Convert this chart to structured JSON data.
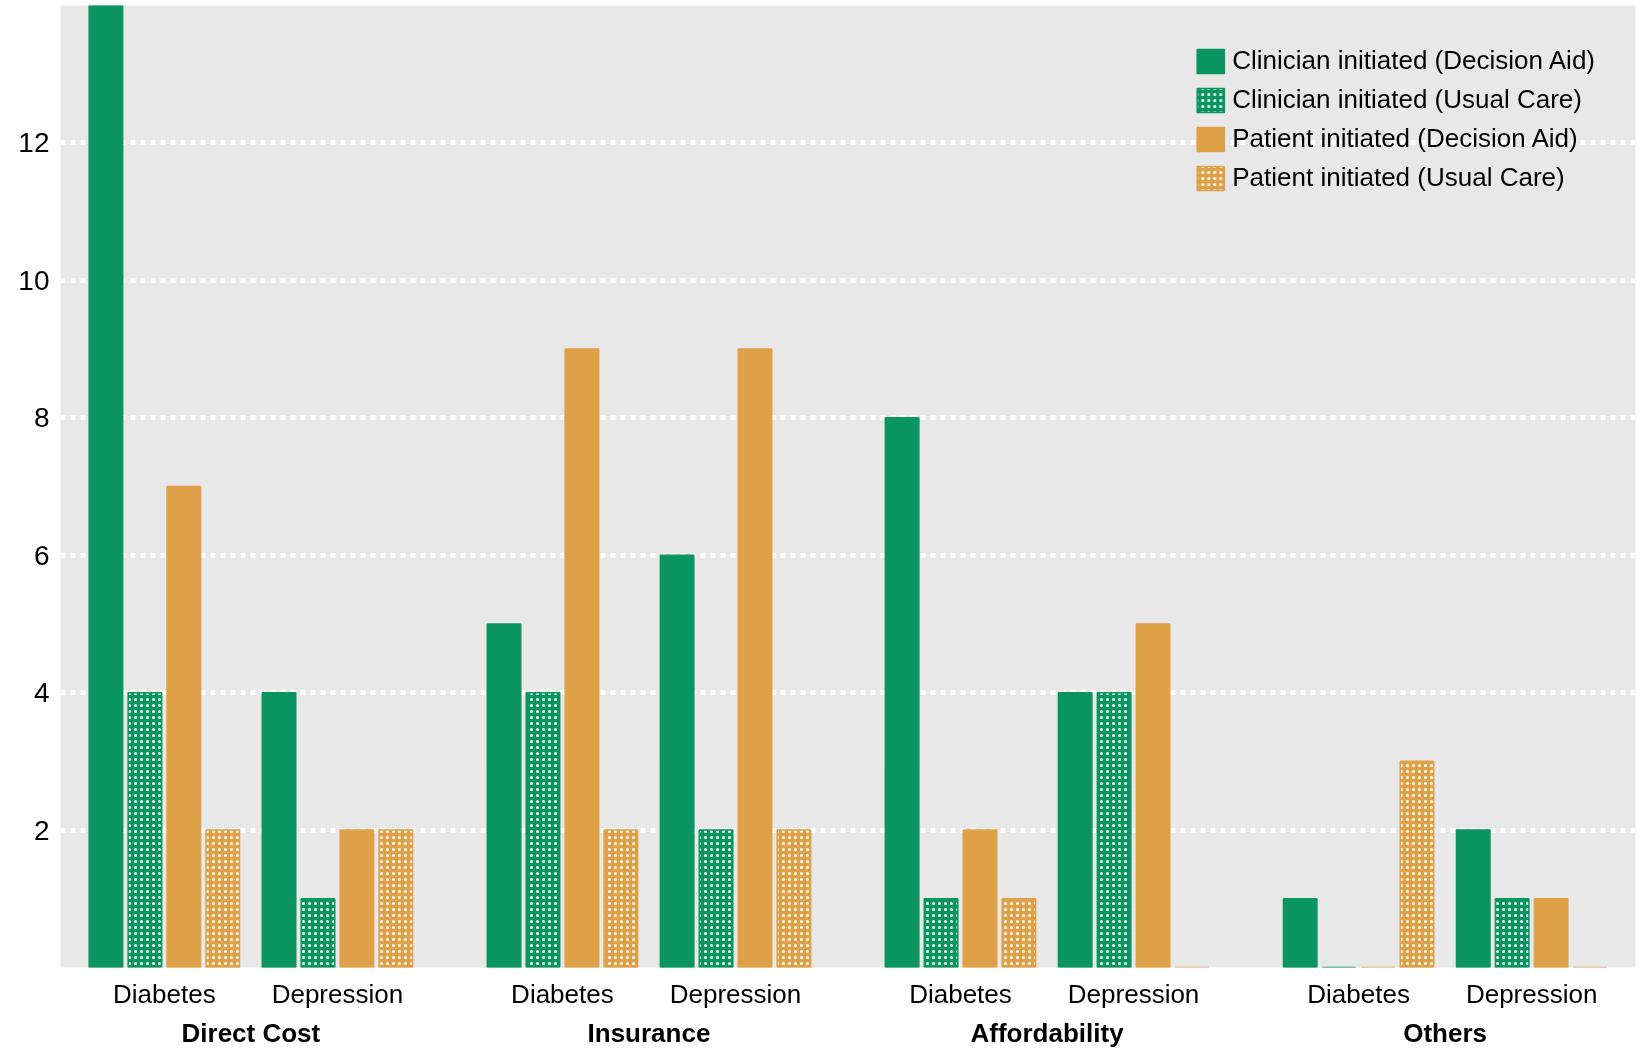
{
  "chart_data": {
    "type": "bar",
    "categories": [
      "Diabetes",
      "Depression",
      "Diabetes",
      "Depression",
      "Diabetes",
      "Depression",
      "Diabetes",
      "Depression"
    ],
    "annotations": [
      "Direct Cost",
      "Insurance",
      "Affordability",
      "Others"
    ],
    "series": [
      {
        "name": "Clinician initiated (Decision Aid)",
        "color": "#0a9460",
        "values": [
          14,
          4,
          5,
          6,
          8,
          4,
          1,
          2
        ]
      },
      {
        "name": "Clinician initiated (Usual Care)",
        "color": "#0a9460",
        "values": [
          4,
          1,
          4,
          2,
          1,
          4,
          0,
          1
        ]
      },
      {
        "name": "Patient initiated (Decision Aid)",
        "color": "#dea148",
        "values": [
          7,
          2,
          9,
          9,
          2,
          5,
          0,
          1
        ]
      },
      {
        "name": "Patient initiated (Usual Care)",
        "color": "#dea148",
        "values": [
          2,
          2,
          2,
          2,
          1,
          0,
          3,
          0
        ]
      }
    ],
    "ylim": [
      0,
      14
    ],
    "yticks": [
      {
        "value": 0,
        "label": null
      },
      2,
      4,
      6,
      8,
      10,
      12,
      {
        "value": 14,
        "label": null
      }
    ],
    "grid": "y",
    "legend": "top right"
  }
}
